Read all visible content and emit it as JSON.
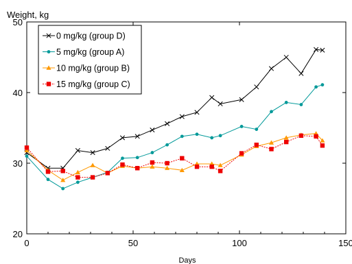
{
  "chart_data": {
    "type": "line",
    "ylabel": "Weight, kg",
    "xlabel": "Days",
    "xlim": [
      0,
      150
    ],
    "ylim": [
      20,
      50
    ],
    "xticks": [
      0,
      50,
      100,
      150
    ],
    "yticks": [
      20,
      30,
      40,
      50
    ],
    "grid": false,
    "legend_position": "top-left",
    "series": [
      {
        "name": "0 mg/kg (group D)",
        "color": "#000000",
        "marker": "x",
        "points": [
          [
            0,
            31.5
          ],
          [
            10,
            29.3
          ],
          [
            17,
            29.3
          ],
          [
            24,
            31.8
          ],
          [
            31,
            31.5
          ],
          [
            38,
            32.1
          ],
          [
            45,
            33.6
          ],
          [
            52,
            33.8
          ],
          [
            59,
            34.7
          ],
          [
            66,
            35.6
          ],
          [
            73,
            36.6
          ],
          [
            80,
            37.2
          ],
          [
            87,
            39.3
          ],
          [
            91,
            38.4
          ],
          [
            101,
            39.0
          ],
          [
            108,
            40.8
          ],
          [
            115,
            43.4
          ],
          [
            122,
            45.0
          ],
          [
            129,
            42.7
          ],
          [
            136,
            46.1
          ],
          [
            139,
            46.0
          ]
        ]
      },
      {
        "name": "5 mg/kg (group A)",
        "color": "#009999",
        "marker": "circle",
        "points": [
          [
            0,
            31.0
          ],
          [
            10,
            27.7
          ],
          [
            17,
            26.4
          ],
          [
            24,
            27.3
          ],
          [
            31,
            28.0
          ],
          [
            38,
            28.7
          ],
          [
            45,
            30.7
          ],
          [
            52,
            30.8
          ],
          [
            59,
            31.5
          ],
          [
            66,
            32.6
          ],
          [
            73,
            33.8
          ],
          [
            80,
            34.1
          ],
          [
            87,
            33.6
          ],
          [
            91,
            33.9
          ],
          [
            101,
            35.2
          ],
          [
            108,
            34.8
          ],
          [
            115,
            37.3
          ],
          [
            122,
            38.6
          ],
          [
            129,
            38.3
          ],
          [
            136,
            40.8
          ],
          [
            139,
            41.1
          ]
        ]
      },
      {
        "name": "10 mg/kg (group B)",
        "color": "#ff9900",
        "marker": "triangle",
        "points": [
          [
            0,
            31.8
          ],
          [
            10,
            29.0
          ],
          [
            17,
            27.6
          ],
          [
            24,
            28.7
          ],
          [
            31,
            29.7
          ],
          [
            38,
            28.6
          ],
          [
            45,
            29.6
          ],
          [
            52,
            29.3
          ],
          [
            59,
            29.5
          ],
          [
            66,
            29.3
          ],
          [
            73,
            29.0
          ],
          [
            80,
            29.9
          ],
          [
            87,
            29.9
          ],
          [
            91,
            29.7
          ],
          [
            101,
            31.2
          ],
          [
            108,
            32.4
          ],
          [
            115,
            32.9
          ],
          [
            122,
            33.6
          ],
          [
            129,
            34.0
          ],
          [
            136,
            34.2
          ],
          [
            139,
            33.2
          ]
        ]
      },
      {
        "name": "15 mg/kg (group C)",
        "color": "#ee0000",
        "marker": "square",
        "points": [
          [
            0,
            32.2
          ],
          [
            10,
            28.8
          ],
          [
            17,
            28.9
          ],
          [
            24,
            28.0
          ],
          [
            31,
            28.0
          ],
          [
            38,
            28.6
          ],
          [
            45,
            29.8
          ],
          [
            52,
            29.3
          ],
          [
            59,
            30.1
          ],
          [
            66,
            30.0
          ],
          [
            73,
            30.7
          ],
          [
            80,
            29.5
          ],
          [
            87,
            29.5
          ],
          [
            91,
            28.9
          ],
          [
            101,
            31.4
          ],
          [
            108,
            32.6
          ],
          [
            115,
            32.0
          ],
          [
            122,
            33.0
          ],
          [
            129,
            33.9
          ],
          [
            136,
            33.8
          ],
          [
            139,
            32.5
          ]
        ]
      }
    ]
  }
}
